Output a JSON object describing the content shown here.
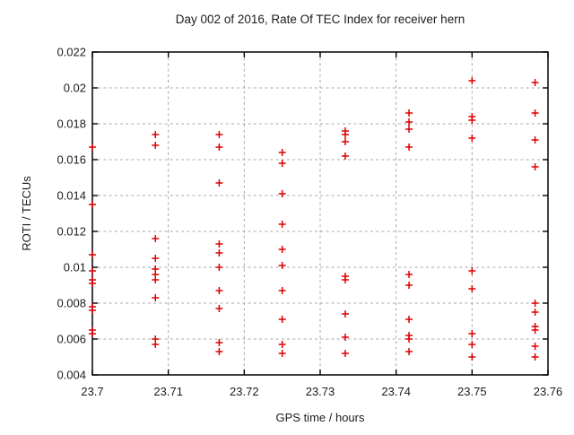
{
  "chart_data": {
    "type": "scatter",
    "title": "Day 002 of 2016, Rate Of TEC Index for receiver hern",
    "xlabel": "GPS time / hours",
    "ylabel": "ROTI / TECUs",
    "xlim": [
      23.7,
      23.76
    ],
    "ylim": [
      0.004,
      0.022
    ],
    "grid": true,
    "legend": "none",
    "marker": {
      "shape": "plus",
      "color": "#dd0000",
      "size": 8
    },
    "axis_color": "#000000",
    "grid_color": "#a8a8a8",
    "xticks": {
      "values": [
        23.7,
        23.71,
        23.72,
        23.73,
        23.74,
        23.75,
        23.76
      ],
      "labels": [
        "23.7",
        "23.71",
        "23.72",
        "23.73",
        "23.74",
        "23.75",
        "23.76"
      ]
    },
    "yticks": {
      "values": [
        0.004,
        0.006,
        0.008,
        0.01,
        0.012,
        0.014,
        0.016,
        0.018,
        0.02,
        0.022
      ],
      "labels": [
        "0.004",
        "0.006",
        "0.008",
        "0.01",
        "0.012",
        "0.014",
        "0.016",
        "0.018",
        "0.02",
        "0.022"
      ]
    },
    "series": [
      {
        "name": "ROTI",
        "x": [
          23.7,
          23.7,
          23.7,
          23.7,
          23.7,
          23.7,
          23.7,
          23.7,
          23.7,
          23.7,
          23.7083,
          23.7083,
          23.7083,
          23.7083,
          23.7083,
          23.7083,
          23.7083,
          23.7083,
          23.7083,
          23.7083,
          23.7167,
          23.7167,
          23.7167,
          23.7167,
          23.7167,
          23.7167,
          23.7167,
          23.7167,
          23.7167,
          23.7167,
          23.725,
          23.725,
          23.725,
          23.725,
          23.725,
          23.725,
          23.725,
          23.725,
          23.725,
          23.725,
          23.7333,
          23.7333,
          23.7333,
          23.7333,
          23.7333,
          23.7333,
          23.7333,
          23.7333,
          23.7333,
          23.7417,
          23.7417,
          23.7417,
          23.7417,
          23.7417,
          23.7417,
          23.7417,
          23.7417,
          23.7417,
          23.7417,
          23.75,
          23.75,
          23.75,
          23.75,
          23.75,
          23.75,
          23.75,
          23.75,
          23.75,
          23.7583,
          23.7583,
          23.7583,
          23.7583,
          23.7583,
          23.7583,
          23.7583,
          23.7583,
          23.7583,
          23.7583
        ],
        "y": [
          0.0167,
          0.0135,
          0.0107,
          0.0098,
          0.0093,
          0.0091,
          0.0078,
          0.0076,
          0.0065,
          0.0063,
          0.0174,
          0.0168,
          0.0116,
          0.0105,
          0.0099,
          0.0096,
          0.0093,
          0.0083,
          0.006,
          0.0057,
          0.0174,
          0.0167,
          0.0147,
          0.0113,
          0.0108,
          0.01,
          0.0087,
          0.0077,
          0.0058,
          0.0053,
          0.0164,
          0.0158,
          0.0141,
          0.0124,
          0.011,
          0.0101,
          0.0087,
          0.0071,
          0.0057,
          0.0052,
          0.0176,
          0.0174,
          0.017,
          0.0162,
          0.0095,
          0.0093,
          0.0074,
          0.0061,
          0.0052,
          0.0186,
          0.0181,
          0.0177,
          0.0167,
          0.0096,
          0.009,
          0.0071,
          0.0062,
          0.006,
          0.0053,
          0.0204,
          0.0184,
          0.0182,
          0.0172,
          0.0098,
          0.0088,
          0.0063,
          0.0057,
          0.005,
          0.0203,
          0.0186,
          0.0171,
          0.0156,
          0.008,
          0.0075,
          0.0067,
          0.0065,
          0.0056,
          0.005
        ]
      }
    ]
  }
}
